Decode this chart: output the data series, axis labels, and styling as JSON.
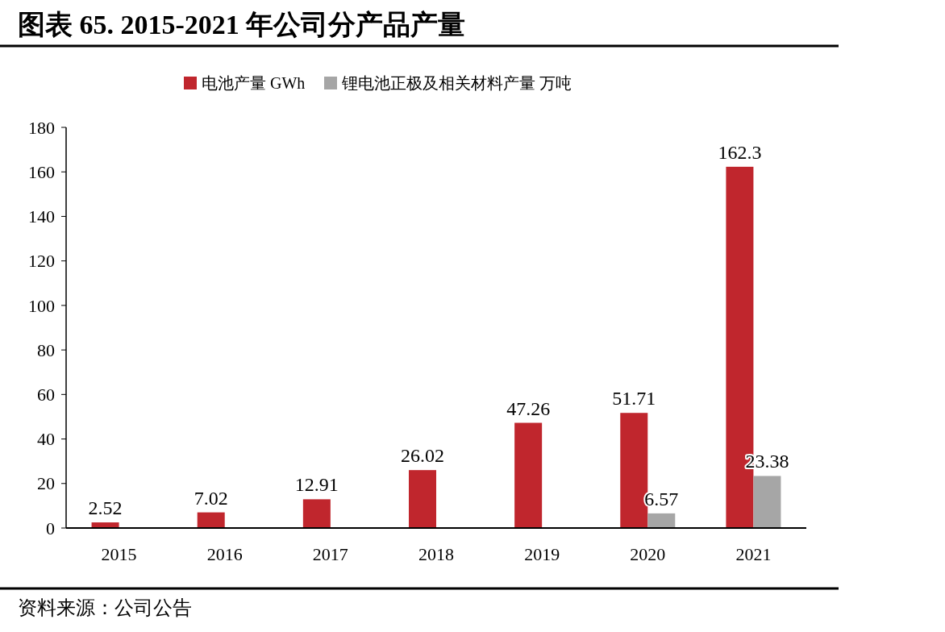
{
  "chart_data": {
    "type": "bar",
    "title": "图表 65. 2015-2021 年公司分产品产量",
    "categories": [
      "2015",
      "2016",
      "2017",
      "2018",
      "2019",
      "2020",
      "2021"
    ],
    "series": [
      {
        "name": "电池产量 GWh",
        "color": "#c0262d",
        "values": [
          2.52,
          7.02,
          12.91,
          26.02,
          47.26,
          51.71,
          162.3
        ]
      },
      {
        "name": "锂电池正极及相关材料产量 万吨",
        "color": "#a6a6a6",
        "values": [
          null,
          null,
          null,
          null,
          null,
          6.57,
          23.38
        ]
      }
    ],
    "ylim": [
      0,
      180
    ],
    "yticks": [
      0,
      20,
      40,
      60,
      80,
      100,
      120,
      140,
      160,
      180
    ],
    "data_labels": true,
    "legend": "top",
    "grid": false,
    "annotations": [
      "资料来源：公司公告"
    ]
  }
}
